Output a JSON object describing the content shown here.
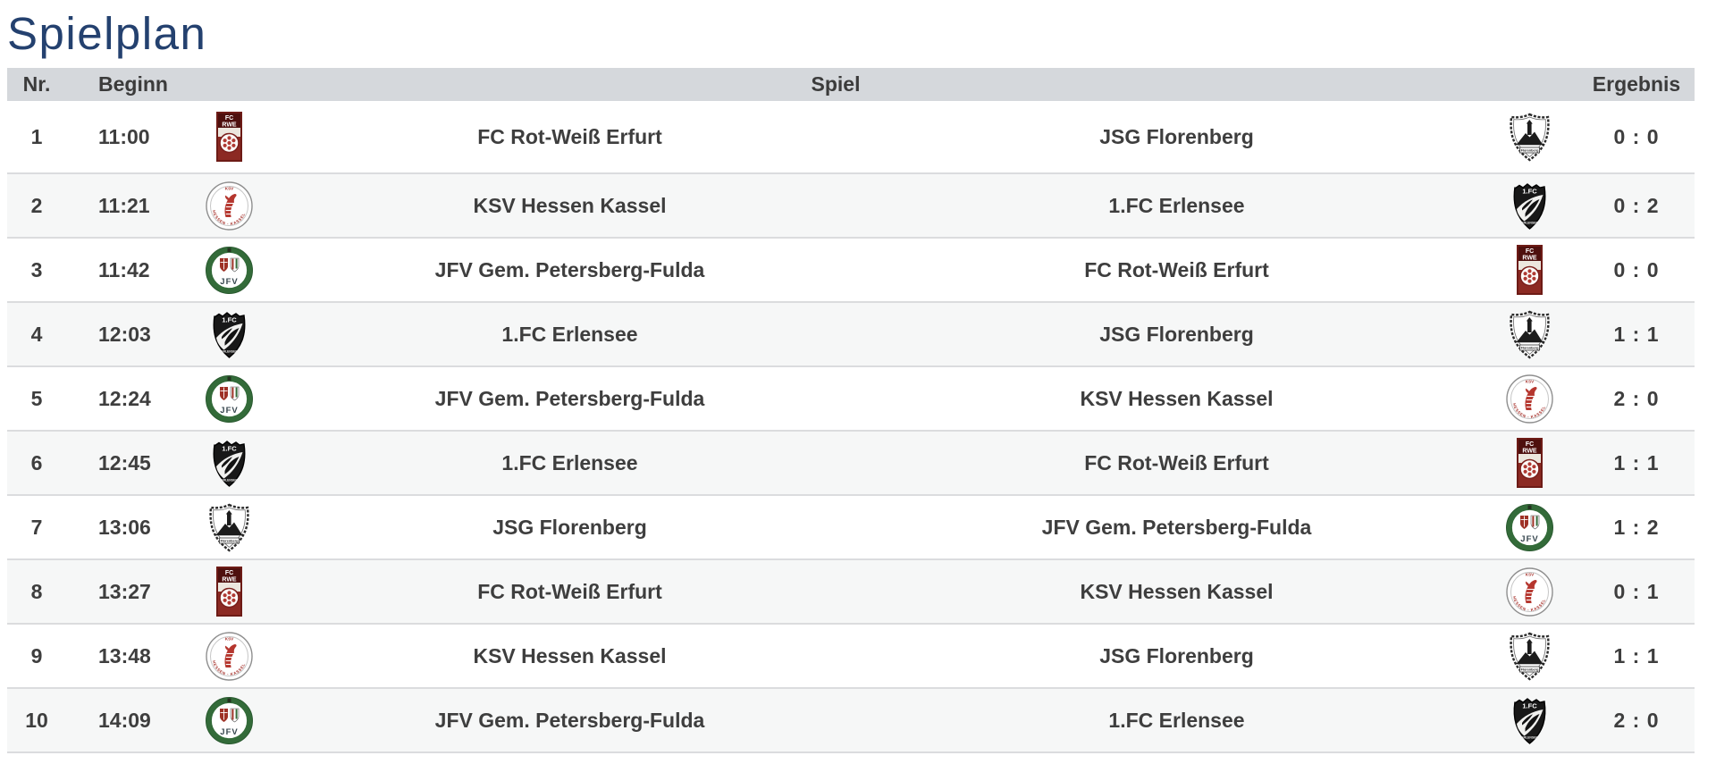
{
  "page": {
    "title": "Spielplan"
  },
  "colors": {
    "title": "#24416f",
    "header_bg": "#d5d8dc",
    "header_text": "#3b3b3b",
    "row_text": "#3e3e3e",
    "row_alt_bg": "#f6f7f7",
    "divider": "#dbdcde"
  },
  "table": {
    "columns": {
      "nr": "Nr.",
      "beginn": "Beginn",
      "spiel": "Spiel",
      "ergebnis": "Ergebnis"
    },
    "teams": {
      "rwe": {
        "name": "FC Rot-Weiß Erfurt",
        "logo_icon": "rot-weiss-erfurt-crest-icon"
      },
      "flo": {
        "name": "JSG Florenberg",
        "logo_icon": "jsg-florenberg-crest-icon"
      },
      "ksv": {
        "name": "KSV Hessen Kassel",
        "logo_icon": "ksv-hessen-kassel-crest-icon"
      },
      "erl": {
        "name": "1.FC Erlensee",
        "logo_icon": "fc-erlensee-crest-icon"
      },
      "jfv": {
        "name": "JFV Gem. Petersberg-Fulda",
        "logo_icon": "jfv-petersberg-fulda-crest-icon"
      }
    },
    "rows": [
      {
        "nr": "1",
        "beginn": "11:00",
        "home": "rwe",
        "away": "flo",
        "ergebnis": "0 : 0"
      },
      {
        "nr": "2",
        "beginn": "11:21",
        "home": "ksv",
        "away": "erl",
        "ergebnis": "0 : 2"
      },
      {
        "nr": "3",
        "beginn": "11:42",
        "home": "jfv",
        "away": "rwe",
        "ergebnis": "0 : 0"
      },
      {
        "nr": "4",
        "beginn": "12:03",
        "home": "erl",
        "away": "flo",
        "ergebnis": "1 : 1"
      },
      {
        "nr": "5",
        "beginn": "12:24",
        "home": "jfv",
        "away": "ksv",
        "ergebnis": "2 : 0"
      },
      {
        "nr": "6",
        "beginn": "12:45",
        "home": "erl",
        "away": "rwe",
        "ergebnis": "1 : 1"
      },
      {
        "nr": "7",
        "beginn": "13:06",
        "home": "flo",
        "away": "jfv",
        "ergebnis": "1 : 2"
      },
      {
        "nr": "8",
        "beginn": "13:27",
        "home": "rwe",
        "away": "ksv",
        "ergebnis": "0 : 1"
      },
      {
        "nr": "9",
        "beginn": "13:48",
        "home": "ksv",
        "away": "flo",
        "ergebnis": "1 : 1"
      },
      {
        "nr": "10",
        "beginn": "14:09",
        "home": "jfv",
        "away": "erl",
        "ergebnis": "2 : 0"
      }
    ]
  }
}
